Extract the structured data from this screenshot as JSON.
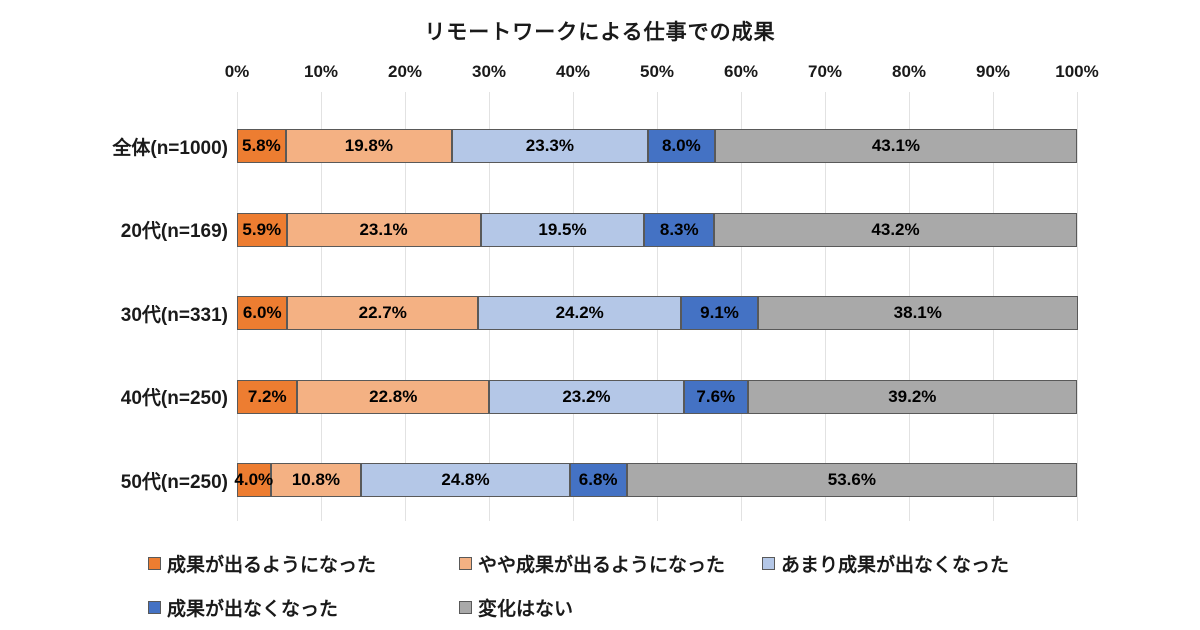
{
  "chart_data": {
    "type": "bar",
    "orientation": "horizontal-stacked-100",
    "title": "リモートワークによる仕事での成果",
    "categories": [
      "全体(n=1000)",
      "20代(n=169)",
      "30代(n=331)",
      "40代(n=250)",
      "50代(n=250)"
    ],
    "series": [
      {
        "name": "成果が出るようになった",
        "color": "#ED7D31",
        "values": [
          5.8,
          5.9,
          6.0,
          7.2,
          4.0
        ]
      },
      {
        "name": "やや成果が出るようになった",
        "color": "#F4B183",
        "values": [
          19.8,
          23.1,
          22.7,
          22.8,
          10.8
        ]
      },
      {
        "name": "あまり成果が出なくなった",
        "color": "#B4C7E7",
        "values": [
          23.3,
          19.5,
          24.2,
          23.2,
          24.8
        ]
      },
      {
        "name": "成果が出なくなった",
        "color": "#4472C4",
        "values": [
          8.0,
          8.3,
          9.1,
          7.6,
          6.8
        ]
      },
      {
        "name": "変化はない",
        "color": "#A9A9A9",
        "values": [
          43.1,
          43.2,
          38.1,
          39.2,
          53.6
        ]
      }
    ],
    "x_ticks": [
      "0%",
      "10%",
      "20%",
      "30%",
      "40%",
      "50%",
      "60%",
      "70%",
      "80%",
      "90%",
      "100%"
    ],
    "xlim": [
      0,
      100
    ],
    "value_suffix": "%",
    "value_decimals": 1,
    "grid": true,
    "gridline_color": "#E2E2E2",
    "segment_border_color": "#595959",
    "legend_position": "bottom"
  }
}
